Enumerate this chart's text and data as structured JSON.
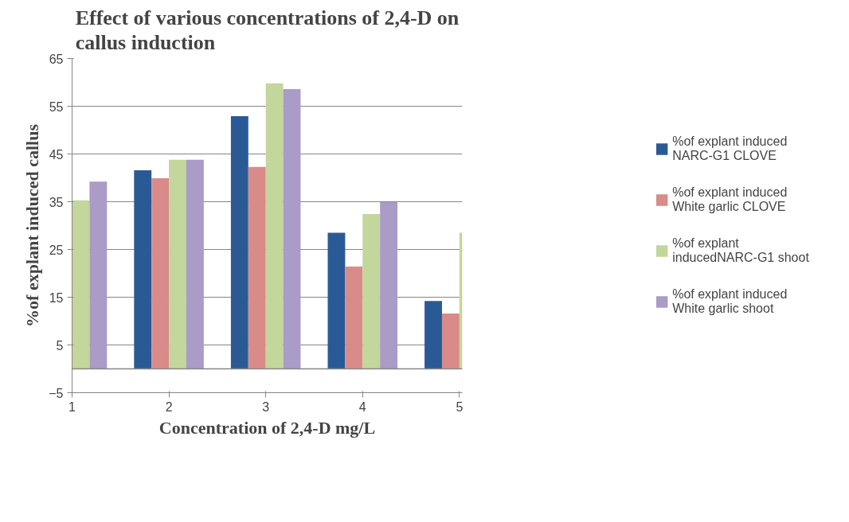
{
  "chart_data": {
    "type": "bar",
    "title": "Effect of various concentrations of 2,4-D on callus induction",
    "xlabel": "Concentration of 2,4-D mg/L",
    "ylabel": "%of explant induced callus",
    "x": [
      1,
      2,
      3,
      4,
      5
    ],
    "xlim": [
      1,
      5.03
    ],
    "xticks": [
      1,
      2,
      3,
      4,
      5
    ],
    "ylim": [
      -5,
      65
    ],
    "yticks": [
      -5,
      5,
      15,
      25,
      35,
      45,
      55,
      65
    ],
    "grid": "y",
    "legend": "right",
    "ref_lines": [
      {
        "axis": "y",
        "value": 0,
        "color": "#868686"
      }
    ],
    "series": [
      {
        "name": "%of explant induced NARC-G1 CLOVE",
        "color": "#2a5a96",
        "values": [
          null,
          41.6,
          52.9,
          28.5,
          14.2
        ]
      },
      {
        "name": "%of explant induced White garlic CLOVE",
        "color": "#d98b89",
        "values": [
          null,
          39.9,
          42.3,
          21.4,
          11.6
        ]
      },
      {
        "name": "%of explant inducedNARC-G1 shoot",
        "color": "#c3d69b",
        "values": [
          35.3,
          43.8,
          59.8,
          32.4,
          28.5
        ]
      },
      {
        "name": "%of explant induced White garlic shoot",
        "color": "#ab9bc7",
        "values": [
          39.2,
          43.8,
          58.6,
          34.9,
          null
        ]
      }
    ]
  }
}
